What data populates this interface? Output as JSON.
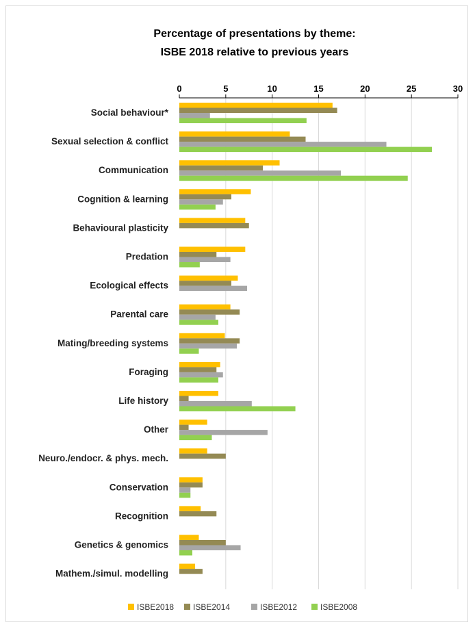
{
  "chart_data": {
    "type": "bar",
    "orientation": "horizontal",
    "title": "Percentage of presentations by theme:",
    "subtitle": "ISBE 2018 relative to previous years",
    "xlabel": "",
    "ylabel": "",
    "xlim": [
      0,
      30
    ],
    "xticks": [
      0,
      5,
      10,
      15,
      20,
      25,
      30
    ],
    "x_axis_position": "top",
    "grid": true,
    "legend_position": "bottom",
    "categories": [
      "Social behaviour*",
      "Sexual selection & conflict",
      "Communication",
      "Cognition & learning",
      "Behavioural plasticity",
      "Predation",
      "Ecological effects",
      "Parental care",
      "Mating/breeding systems",
      "Foraging",
      "Life history",
      "Other",
      "Neuro./endocr. & phys. mech.",
      "Conservation",
      "Recognition",
      "Genetics & genomics",
      "Mathem./simul. modelling"
    ],
    "series": [
      {
        "name": "ISBE2018",
        "color": "#FFC000",
        "values": [
          16.5,
          11.9,
          10.8,
          7.7,
          7.1,
          7.1,
          6.3,
          5.5,
          4.9,
          4.4,
          4.2,
          3.0,
          3.0,
          2.5,
          2.3,
          2.1,
          1.7
        ]
      },
      {
        "name": "ISBE2014",
        "color": "#948A54",
        "values": [
          17.0,
          13.6,
          9.0,
          5.6,
          7.5,
          4.0,
          5.6,
          6.5,
          6.5,
          4.0,
          1.0,
          1.0,
          5.0,
          2.5,
          4.0,
          5.0,
          2.5
        ]
      },
      {
        "name": "ISBE2012",
        "color": "#A6A6A6",
        "values": [
          3.3,
          22.3,
          17.4,
          4.7,
          null,
          5.5,
          7.3,
          3.9,
          6.2,
          4.7,
          7.8,
          9.5,
          null,
          1.2,
          null,
          6.6,
          null
        ]
      },
      {
        "name": "ISBE2008",
        "color": "#92D050",
        "values": [
          13.7,
          27.2,
          24.6,
          3.9,
          null,
          2.2,
          null,
          4.2,
          2.1,
          4.2,
          12.5,
          3.5,
          null,
          1.2,
          null,
          1.4,
          null
        ]
      }
    ]
  }
}
